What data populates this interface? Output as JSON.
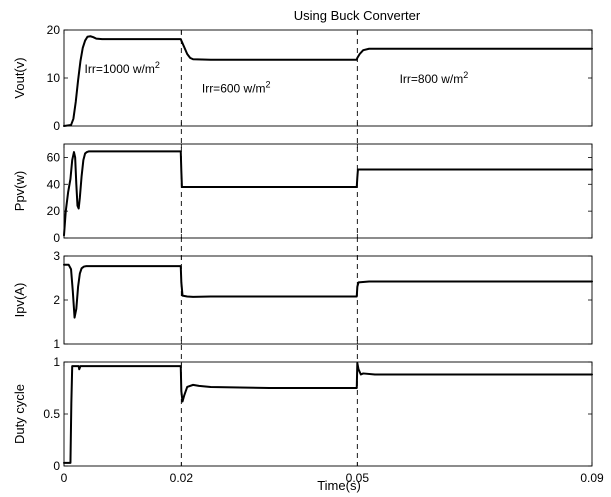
{
  "chart_data": {
    "type": "line",
    "title": "Using Buck Converter",
    "xlabel": "Time(s)",
    "xlim": [
      0,
      0.09
    ],
    "x_ticks": [
      "0",
      "0.02",
      "0.05",
      "0.09"
    ],
    "x_tick_values": [
      0,
      0.02,
      0.05,
      0.09
    ],
    "event_times": [
      0.02,
      0.05
    ],
    "grid": false,
    "annotations": [
      {
        "text": "Irr=1000 w/m",
        "sup": "2",
        "x": 0.0035,
        "y": 11
      },
      {
        "text": "Irr=600 w/m",
        "sup": "2",
        "x": 0.0235,
        "y": 7
      },
      {
        "text": "Irr=800 w/m",
        "sup": "2",
        "x": 0.0572,
        "y": 9
      }
    ],
    "panels": [
      {
        "ylabel": "Vout(v)",
        "ylim": [
          0,
          20
        ],
        "yticks": [
          0,
          10,
          20
        ],
        "ytick_labels": [
          "0",
          "10",
          "20"
        ],
        "series": [
          {
            "x": [
              0,
              0.0012,
              0.0016,
              0.002,
              0.0024,
              0.0028,
              0.0032,
              0.0036,
              0.004,
              0.0045,
              0.005,
              0.0055,
              0.0065,
              0.008,
              0.012,
              0.016,
              0.0199,
              0.02,
              0.0205,
              0.021,
              0.0215,
              0.022,
              0.025,
              0.035,
              0.045,
              0.0499,
              0.05,
              0.0504,
              0.051,
              0.052,
              0.06,
              0.07,
              0.08,
              0.09
            ],
            "values": [
              0,
              0.2,
              1.5,
              5,
              9.5,
              13.5,
              16.3,
              17.8,
              18.6,
              18.7,
              18.5,
              18.2,
              18.1,
              18.1,
              18.1,
              18.1,
              18.1,
              17.8,
              16.4,
              15.0,
              14.2,
              13.9,
              13.8,
              13.8,
              13.8,
              13.8,
              14.2,
              15.0,
              15.8,
              16.1,
              16.1,
              16.1,
              16.1,
              16.1
            ]
          }
        ]
      },
      {
        "ylabel": "Ppv(w)",
        "ylim": [
          0,
          70
        ],
        "yticks": [
          0,
          20,
          40,
          60
        ],
        "ytick_labels": [
          "0",
          "20",
          "40",
          "60"
        ],
        "series": [
          {
            "x": [
              0,
              0.0003,
              0.0007,
              0.0011,
              0.0014,
              0.0017,
              0.0019,
              0.0021,
              0.0023,
              0.0025,
              0.0027,
              0.003,
              0.0033,
              0.0036,
              0.0039,
              0.0042,
              0.0046,
              0.005,
              0.006,
              0.01,
              0.015,
              0.0199,
              0.02,
              0.0201,
              0.025,
              0.035,
              0.045,
              0.0499,
              0.05,
              0.0501,
              0.055,
              0.065,
              0.075,
              0.085,
              0.09
            ],
            "values": [
              2,
              20,
              34,
              44,
              58,
              64,
              60,
              40,
              24,
              22,
              30,
              46,
              58,
              63,
              64,
              64.5,
              64.5,
              64.5,
              64.5,
              64.5,
              64.5,
              64.5,
              50,
              38,
              38,
              38,
              38,
              38,
              45,
              51,
              51,
              51,
              51,
              51,
              51
            ]
          }
        ]
      },
      {
        "ylabel": "Ipv(A)",
        "ylim": [
          1,
          3
        ],
        "yticks": [
          1,
          2,
          3
        ],
        "ytick_labels": [
          "1",
          "2",
          "3"
        ],
        "series": [
          {
            "x": [
              0,
              0.0008,
              0.0012,
              0.0015,
              0.0018,
              0.0021,
              0.0024,
              0.0027,
              0.003,
              0.0034,
              0.0038,
              0.0045,
              0.006,
              0.01,
              0.015,
              0.0199,
              0.02,
              0.0202,
              0.021,
              0.022,
              0.025,
              0.035,
              0.045,
              0.0499,
              0.05,
              0.0502,
              0.052,
              0.06,
              0.07,
              0.08,
              0.09
            ],
            "values": [
              2.8,
              2.8,
              2.7,
              2.2,
              1.6,
              1.8,
              2.3,
              2.6,
              2.72,
              2.76,
              2.77,
              2.77,
              2.77,
              2.77,
              2.77,
              2.77,
              2.4,
              2.1,
              2.08,
              2.07,
              2.08,
              2.08,
              2.08,
              2.08,
              2.3,
              2.4,
              2.42,
              2.42,
              2.42,
              2.42,
              2.42
            ]
          }
        ]
      },
      {
        "ylabel": "Duty cycle",
        "ylim": [
          0,
          1
        ],
        "yticks": [
          0,
          0.5,
          1
        ],
        "ytick_labels": [
          "0",
          "0.5",
          "1"
        ],
        "series": [
          {
            "x": [
              0,
              0.0011,
              0.00125,
              0.0014,
              0.0025,
              0.0026,
              0.0028,
              0.003,
              0.004,
              0.01,
              0.015,
              0.0199,
              0.02,
              0.0202,
              0.0205,
              0.021,
              0.022,
              0.023,
              0.025,
              0.03,
              0.035,
              0.04,
              0.045,
              0.0499,
              0.05,
              0.0502,
              0.0506,
              0.051,
              0.053,
              0.06,
              0.07,
              0.08,
              0.09
            ],
            "values": [
              0.03,
              0.03,
              0.6,
              0.96,
              0.96,
              0.93,
              0.96,
              0.96,
              0.96,
              0.96,
              0.96,
              0.96,
              0.72,
              0.62,
              0.68,
              0.76,
              0.78,
              0.77,
              0.76,
              0.755,
              0.75,
              0.75,
              0.75,
              0.75,
              0.99,
              0.93,
              0.88,
              0.89,
              0.88,
              0.88,
              0.88,
              0.88,
              0.88
            ]
          }
        ]
      }
    ]
  }
}
